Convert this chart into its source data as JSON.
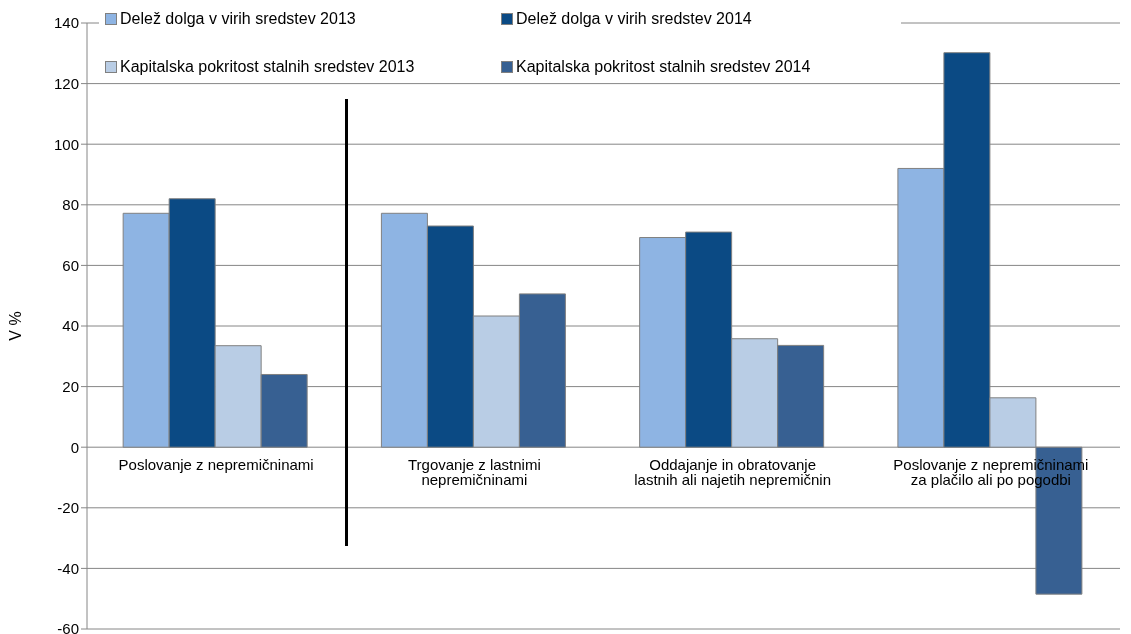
{
  "chart_data": {
    "type": "bar",
    "ylabel": "V %",
    "categories": [
      "Poslovanje z nepremičninami",
      "Trgovanje z lastnimi nepremičninami",
      "Oddajanje in obratovanje lastnih ali najetih nepremičnin",
      "Poslovanje z nepremičninami za plačilo ali po pogodbi"
    ],
    "series": [
      {
        "name": "Delež dolga v virih sredstev 2013",
        "color": "#8eb4e3",
        "values": [
          77.2,
          77.2,
          69.2,
          92
        ]
      },
      {
        "name": "Delež dolga v virih sredstev 2014",
        "color": "#0b4a84",
        "values": [
          82,
          73,
          71,
          130.2
        ]
      },
      {
        "name": "Kapitalska pokritost stalnih sredstev 2013",
        "color": "#b9cde5",
        "values": [
          33.5,
          43.3,
          35.8,
          16.3
        ]
      },
      {
        "name": "Kapitalska pokritost stalnih sredstev 2014",
        "color": "#376092",
        "values": [
          24,
          50.6,
          33.6,
          -48.5
        ]
      }
    ],
    "ylim": [
      -60,
      140
    ],
    "yticks": [
      -60,
      -40,
      -20,
      0,
      20,
      40,
      60,
      80,
      100,
      120,
      140
    ],
    "grid": "y",
    "legend": "top"
  }
}
